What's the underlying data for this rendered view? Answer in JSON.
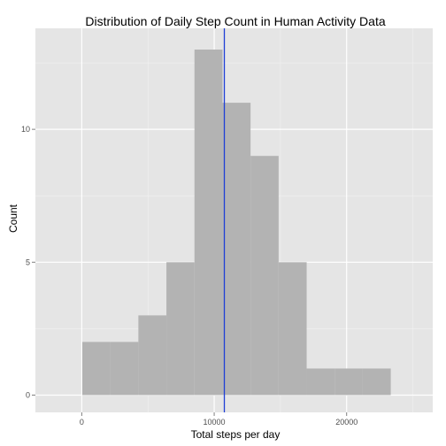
{
  "chart_data": {
    "type": "bar",
    "title": "Distribution of Daily Step Count in Human Activity Data",
    "xlabel": "Total steps per day",
    "ylabel": "Count",
    "xlim": [
      -3500,
      26500
    ],
    "ylim": [
      -0.65,
      13.8
    ],
    "x_ticks": [
      0,
      10000,
      20000
    ],
    "x_tick_labels": [
      "0",
      "10000",
      "20000"
    ],
    "y_ticks": [
      0,
      5,
      10
    ],
    "y_tick_labels": [
      "0",
      "5",
      "10"
    ],
    "bin_width": 2117.4,
    "bins": [
      {
        "start": 41,
        "end": 2158,
        "count": 2
      },
      {
        "start": 2158,
        "end": 4276,
        "count": 2
      },
      {
        "start": 4276,
        "end": 6393,
        "count": 3
      },
      {
        "start": 6393,
        "end": 8511,
        "count": 5
      },
      {
        "start": 8511,
        "end": 10628,
        "count": 13
      },
      {
        "start": 10628,
        "end": 12746,
        "count": 11
      },
      {
        "start": 12746,
        "end": 14863,
        "count": 9
      },
      {
        "start": 14863,
        "end": 16981,
        "count": 5
      },
      {
        "start": 16981,
        "end": 19098,
        "count": 1
      },
      {
        "start": 19098,
        "end": 21216,
        "count": 1
      },
      {
        "start": 21216,
        "end": 23333,
        "count": 1
      }
    ],
    "reference_line": {
      "x": 10766,
      "orientation": "vertical"
    },
    "grid": true,
    "colors": {
      "panel_background": "#e5e5e5",
      "grid_major": "#ffffff",
      "grid_minor": "#f2f2f2",
      "bar_fill": "#b3b3b3",
      "reference_line": "#1f3fd6"
    }
  }
}
